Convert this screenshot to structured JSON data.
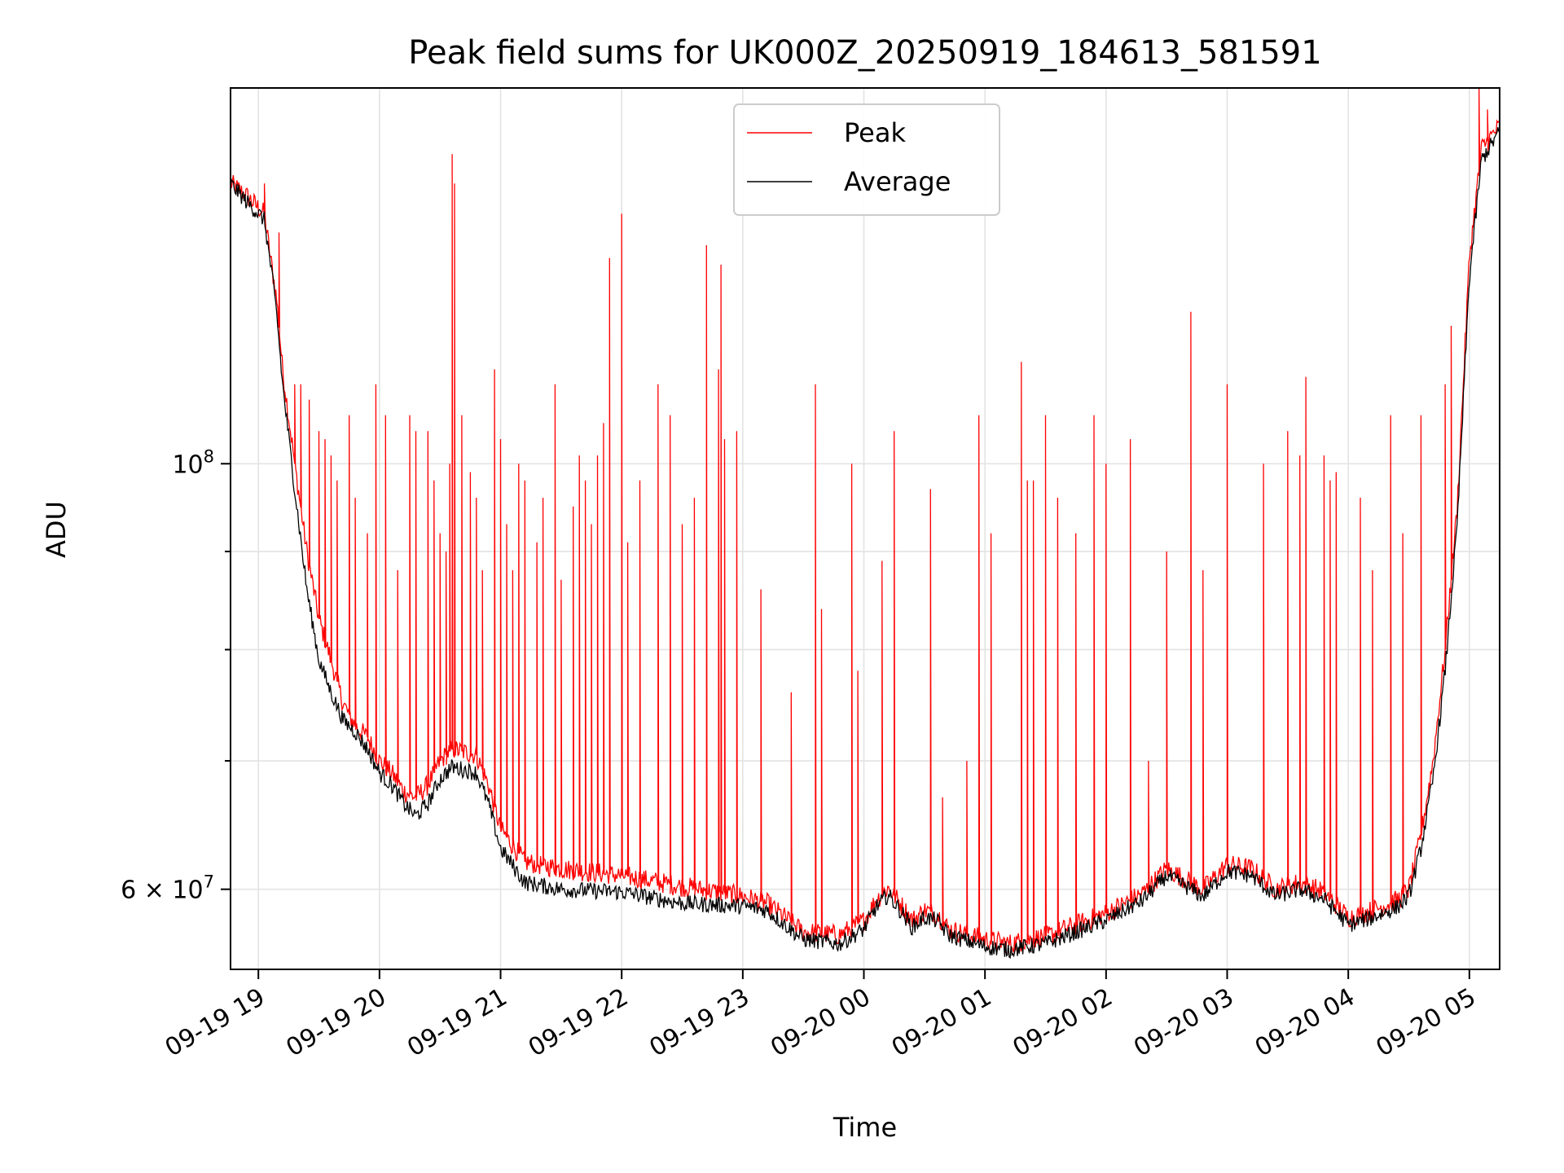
{
  "chart_data": {
    "type": "line",
    "title": "Peak field sums for UK000Z_20250919_184613_581591",
    "xlabel": "Time",
    "ylabel": "ADU",
    "y_scale": "log",
    "ylim": [
      54500000,
      157000000
    ],
    "xlim_hours": [
      -0.23,
      10.25
    ],
    "grid": true,
    "legend_position": "upper center",
    "x_ticks": [
      {
        "hour": 0,
        "label": "09-19 19"
      },
      {
        "hour": 1,
        "label": "09-19 20"
      },
      {
        "hour": 2,
        "label": "09-19 21"
      },
      {
        "hour": 3,
        "label": "09-19 22"
      },
      {
        "hour": 4,
        "label": "09-19 23"
      },
      {
        "hour": 5,
        "label": "09-20 00"
      },
      {
        "hour": 6,
        "label": "09-20 01"
      },
      {
        "hour": 7,
        "label": "09-20 02"
      },
      {
        "hour": 8,
        "label": "09-20 03"
      },
      {
        "hour": 9,
        "label": "09-20 04"
      },
      {
        "hour": 10,
        "label": "09-20 05"
      }
    ],
    "y_ticks_major": [
      {
        "value": 100000000,
        "base": "10",
        "exp": "8"
      },
      {
        "value": 60000000,
        "mant": "6",
        "times": "×",
        "base": "10",
        "exp": "7"
      }
    ],
    "y_minor_grid": [
      70000000,
      80000000,
      90000000
    ],
    "series": [
      {
        "name": "Peak",
        "color": "#ff0000",
        "baseline": [
          [
            -0.23,
            140000000
          ],
          [
            -0.1,
            138000000
          ],
          [
            0.05,
            135000000
          ],
          [
            0.1,
            128000000
          ],
          [
            0.15,
            122000000
          ],
          [
            0.2,
            112000000
          ],
          [
            0.3,
            100000000
          ],
          [
            0.4,
            90000000
          ],
          [
            0.5,
            83000000
          ],
          [
            0.6,
            79000000
          ],
          [
            0.7,
            75000000
          ],
          [
            0.8,
            73000000
          ],
          [
            0.9,
            72000000
          ],
          [
            1.0,
            70000000
          ],
          [
            1.1,
            69000000
          ],
          [
            1.2,
            67500000
          ],
          [
            1.3,
            67000000
          ],
          [
            1.4,
            68000000
          ],
          [
            1.5,
            70000000
          ],
          [
            1.6,
            71000000
          ],
          [
            1.8,
            70500000
          ],
          [
            1.9,
            68000000
          ],
          [
            2.0,
            64500000
          ],
          [
            2.2,
            62000000
          ],
          [
            2.5,
            61500000
          ],
          [
            3.0,
            61000000
          ],
          [
            3.5,
            60200000
          ],
          [
            4.0,
            59500000
          ],
          [
            4.2,
            59000000
          ],
          [
            4.5,
            57000000
          ],
          [
            4.8,
            56800000
          ],
          [
            5.0,
            57800000
          ],
          [
            5.1,
            59200000
          ],
          [
            5.2,
            60100000
          ],
          [
            5.3,
            59000000
          ],
          [
            5.4,
            57800000
          ],
          [
            5.5,
            58500000
          ],
          [
            5.6,
            58300000
          ],
          [
            5.7,
            57200000
          ],
          [
            6.0,
            56500000
          ],
          [
            6.2,
            56200000
          ],
          [
            6.5,
            56700000
          ],
          [
            7.0,
            58300000
          ],
          [
            7.3,
            59700000
          ],
          [
            7.5,
            61500000
          ],
          [
            7.6,
            61000000
          ],
          [
            7.8,
            60000000
          ],
          [
            8.0,
            61800000
          ],
          [
            8.2,
            61500000
          ],
          [
            8.4,
            60000000
          ],
          [
            8.6,
            60500000
          ],
          [
            8.8,
            59800000
          ],
          [
            9.0,
            58000000
          ],
          [
            9.2,
            58500000
          ],
          [
            9.4,
            59200000
          ],
          [
            9.5,
            60000000
          ],
          [
            9.6,
            64000000
          ],
          [
            9.7,
            70000000
          ],
          [
            9.8,
            80000000
          ],
          [
            9.9,
            95000000
          ],
          [
            10.0,
            128000000
          ],
          [
            10.1,
            146000000
          ],
          [
            10.25,
            150000000
          ]
        ],
        "spikes": [
          [
            0.05,
            140000000
          ],
          [
            0.17,
            132000000
          ],
          [
            0.3,
            110000000
          ],
          [
            0.35,
            110000000
          ],
          [
            0.42,
            108000000
          ],
          [
            0.5,
            104000000
          ],
          [
            0.55,
            103000000
          ],
          [
            0.6,
            101000000
          ],
          [
            0.65,
            98000000
          ],
          [
            0.75,
            106000000
          ],
          [
            0.8,
            96000000
          ],
          [
            0.9,
            92000000
          ],
          [
            0.97,
            110000000
          ],
          [
            1.05,
            106000000
          ],
          [
            1.15,
            88000000
          ],
          [
            1.25,
            106000000
          ],
          [
            1.3,
            104000000
          ],
          [
            1.4,
            104000000
          ],
          [
            1.45,
            98000000
          ],
          [
            1.5,
            92000000
          ],
          [
            1.55,
            90000000
          ],
          [
            1.58,
            100000000
          ],
          [
            1.6,
            145000000
          ],
          [
            1.62,
            140000000
          ],
          [
            1.68,
            106000000
          ],
          [
            1.75,
            99000000
          ],
          [
            1.8,
            96000000
          ],
          [
            1.85,
            88000000
          ],
          [
            1.95,
            112000000
          ],
          [
            2.0,
            103000000
          ],
          [
            2.05,
            93000000
          ],
          [
            2.1,
            88000000
          ],
          [
            2.15,
            100000000
          ],
          [
            2.2,
            98000000
          ],
          [
            2.3,
            91000000
          ],
          [
            2.35,
            96000000
          ],
          [
            2.45,
            110000000
          ],
          [
            2.5,
            87000000
          ],
          [
            2.6,
            95000000
          ],
          [
            2.65,
            101000000
          ],
          [
            2.7,
            98000000
          ],
          [
            2.75,
            93000000
          ],
          [
            2.8,
            101000000
          ],
          [
            2.85,
            105000000
          ],
          [
            2.9,
            128000000
          ],
          [
            3.0,
            135000000
          ],
          [
            3.05,
            91000000
          ],
          [
            3.15,
            98000000
          ],
          [
            3.3,
            110000000
          ],
          [
            3.4,
            106000000
          ],
          [
            3.5,
            93000000
          ],
          [
            3.6,
            96000000
          ],
          [
            3.7,
            130000000
          ],
          [
            3.8,
            112000000
          ],
          [
            3.82,
            127000000
          ],
          [
            3.85,
            103000000
          ],
          [
            3.95,
            104000000
          ],
          [
            4.15,
            86000000
          ],
          [
            4.4,
            76000000
          ],
          [
            4.6,
            110000000
          ],
          [
            4.65,
            84000000
          ],
          [
            4.9,
            100000000
          ],
          [
            4.95,
            78000000
          ],
          [
            5.15,
            89000000
          ],
          [
            5.25,
            104000000
          ],
          [
            5.55,
            97000000
          ],
          [
            5.65,
            67000000
          ],
          [
            5.85,
            70000000
          ],
          [
            5.95,
            106000000
          ],
          [
            6.05,
            92000000
          ],
          [
            6.3,
            113000000
          ],
          [
            6.35,
            98000000
          ],
          [
            6.4,
            98000000
          ],
          [
            6.5,
            106000000
          ],
          [
            6.6,
            96000000
          ],
          [
            6.75,
            92000000
          ],
          [
            6.9,
            106000000
          ],
          [
            7.0,
            100000000
          ],
          [
            7.2,
            103000000
          ],
          [
            7.35,
            70000000
          ],
          [
            7.5,
            90000000
          ],
          [
            7.7,
            120000000
          ],
          [
            7.8,
            88000000
          ],
          [
            8.0,
            110000000
          ],
          [
            8.3,
            100000000
          ],
          [
            8.5,
            104000000
          ],
          [
            8.6,
            101000000
          ],
          [
            8.65,
            111000000
          ],
          [
            8.8,
            101000000
          ],
          [
            8.85,
            98000000
          ],
          [
            8.9,
            99000000
          ],
          [
            9.1,
            96000000
          ],
          [
            9.2,
            88000000
          ],
          [
            9.35,
            106000000
          ],
          [
            9.45,
            92000000
          ],
          [
            9.6,
            106000000
          ],
          [
            9.8,
            110000000
          ],
          [
            9.85,
            118000000
          ],
          [
            10.08,
            157000000
          ],
          [
            10.15,
            153000000
          ]
        ]
      },
      {
        "name": "Average",
        "color": "#000000",
        "baseline": [
          [
            -0.23,
            140000000
          ],
          [
            -0.1,
            137000000
          ],
          [
            0.05,
            134000000
          ],
          [
            0.1,
            127000000
          ],
          [
            0.15,
            120000000
          ],
          [
            0.2,
            110000000
          ],
          [
            0.3,
            97000000
          ],
          [
            0.4,
            86000000
          ],
          [
            0.5,
            79000000
          ],
          [
            0.6,
            76000000
          ],
          [
            0.7,
            73500000
          ],
          [
            0.8,
            72500000
          ],
          [
            0.9,
            71000000
          ],
          [
            1.0,
            69000000
          ],
          [
            1.1,
            68000000
          ],
          [
            1.2,
            66500000
          ],
          [
            1.3,
            65500000
          ],
          [
            1.4,
            66500000
          ],
          [
            1.5,
            68500000
          ],
          [
            1.6,
            69500000
          ],
          [
            1.8,
            69000000
          ],
          [
            1.9,
            66500000
          ],
          [
            2.0,
            63000000
          ],
          [
            2.2,
            60500000
          ],
          [
            2.5,
            60000000
          ],
          [
            3.0,
            59800000
          ],
          [
            3.5,
            59000000
          ],
          [
            4.0,
            58800000
          ],
          [
            4.2,
            58500000
          ],
          [
            4.5,
            56500000
          ],
          [
            4.8,
            56200000
          ],
          [
            5.0,
            57200000
          ],
          [
            5.1,
            58700000
          ],
          [
            5.2,
            59600000
          ],
          [
            5.3,
            58500000
          ],
          [
            5.4,
            57300000
          ],
          [
            5.5,
            58000000
          ],
          [
            5.6,
            57800000
          ],
          [
            5.7,
            56800000
          ],
          [
            6.0,
            56000000
          ],
          [
            6.2,
            55800000
          ],
          [
            6.5,
            56200000
          ],
          [
            7.0,
            57800000
          ],
          [
            7.3,
            59200000
          ],
          [
            7.5,
            61000000
          ],
          [
            7.6,
            60500000
          ],
          [
            7.8,
            59500000
          ],
          [
            8.0,
            61300000
          ],
          [
            8.2,
            61000000
          ],
          [
            8.4,
            59500000
          ],
          [
            8.6,
            60000000
          ],
          [
            8.8,
            59300000
          ],
          [
            9.0,
            57500000
          ],
          [
            9.2,
            58000000
          ],
          [
            9.4,
            58700000
          ],
          [
            9.5,
            59500000
          ],
          [
            9.6,
            63000000
          ],
          [
            9.7,
            68500000
          ],
          [
            9.8,
            78000000
          ],
          [
            9.9,
            93000000
          ],
          [
            10.0,
            125000000
          ],
          [
            10.1,
            144000000
          ],
          [
            10.25,
            149000000
          ]
        ]
      }
    ]
  }
}
